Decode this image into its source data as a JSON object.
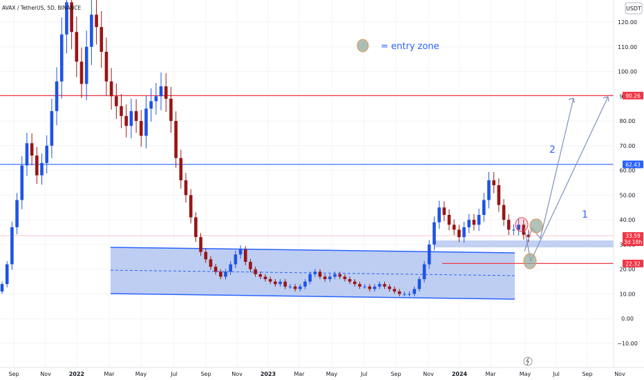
{
  "header": {
    "symbol": "AVAX / TetherUS, 5D, BINANCE"
  },
  "currency_button": {
    "label": "USDT"
  },
  "annotations": {
    "entry_zone_label": "= entry zone",
    "wave_1": "1",
    "wave_2": "2"
  },
  "price_badges": {
    "upper_resistance": "90.26",
    "mid_resistance": "62.43",
    "last_price": "33.59",
    "countdown": "3d 18h",
    "support": "22.32"
  },
  "colors": {
    "background": "#ffffff",
    "up_candle": "#1e53e5",
    "down_candle": "#991515",
    "resistance_red": "#f23645",
    "resistance_blue": "#2962ff",
    "channel_fill": "#b3c5f0",
    "entry_zone": "#8fa8a0",
    "entry_zone_border": "#e0a060",
    "projection": "#7f8fbf"
  },
  "chart_data": {
    "type": "candlestick",
    "title": "AVAX / TetherUS, 5D, BINANCE",
    "ylabel": "USDT",
    "ylim": [
      -13,
      128
    ],
    "y_ticks": [
      -10,
      0,
      10,
      20,
      30,
      40,
      50,
      60,
      70,
      80,
      90,
      100,
      110,
      120
    ],
    "y_tick_labels": [
      "−10.00",
      "0.00",
      "10.00",
      "20.00",
      "30.00",
      "40.00",
      "50.00",
      "60.00",
      "70.00",
      "80.00",
      "90.00",
      "100.00",
      "110.00",
      "120.00"
    ],
    "x_tick_labels": [
      "Sep",
      "Nov",
      "2022",
      "Mar",
      "May",
      "Jul",
      "Sep",
      "Nov",
      "2023",
      "Mar",
      "May",
      "Jul",
      "Sep",
      "Nov",
      "2024",
      "Mar",
      "May",
      "Jul",
      "Sep",
      "Nov"
    ],
    "x_tick_bold": [
      "2022",
      "2023",
      "2024"
    ],
    "horizontal_levels": [
      90.26,
      62.43,
      22.32
    ],
    "close_series": [
      14,
      22,
      37,
      48,
      62,
      71,
      66,
      58,
      63,
      70,
      84,
      96,
      115,
      128,
      116,
      104,
      95,
      110,
      123,
      118,
      108,
      96,
      90,
      86,
      82,
      78,
      84,
      80,
      74,
      85,
      88,
      90,
      94,
      89,
      80,
      65,
      56,
      50,
      41,
      33,
      27,
      24,
      21,
      19,
      17,
      19,
      22,
      26,
      28,
      23,
      20,
      18,
      17,
      16,
      15,
      14,
      15,
      13,
      13,
      12,
      13,
      15,
      18,
      19,
      17,
      16,
      17,
      18,
      17,
      16,
      15,
      14,
      13,
      13,
      12,
      13,
      14,
      13,
      12,
      11,
      10,
      10,
      10,
      12,
      16,
      22,
      30,
      39,
      45,
      42,
      38,
      36,
      33,
      37,
      40,
      38,
      42,
      48,
      56,
      54,
      46,
      40,
      36,
      36,
      38,
      34,
      33
    ]
  }
}
